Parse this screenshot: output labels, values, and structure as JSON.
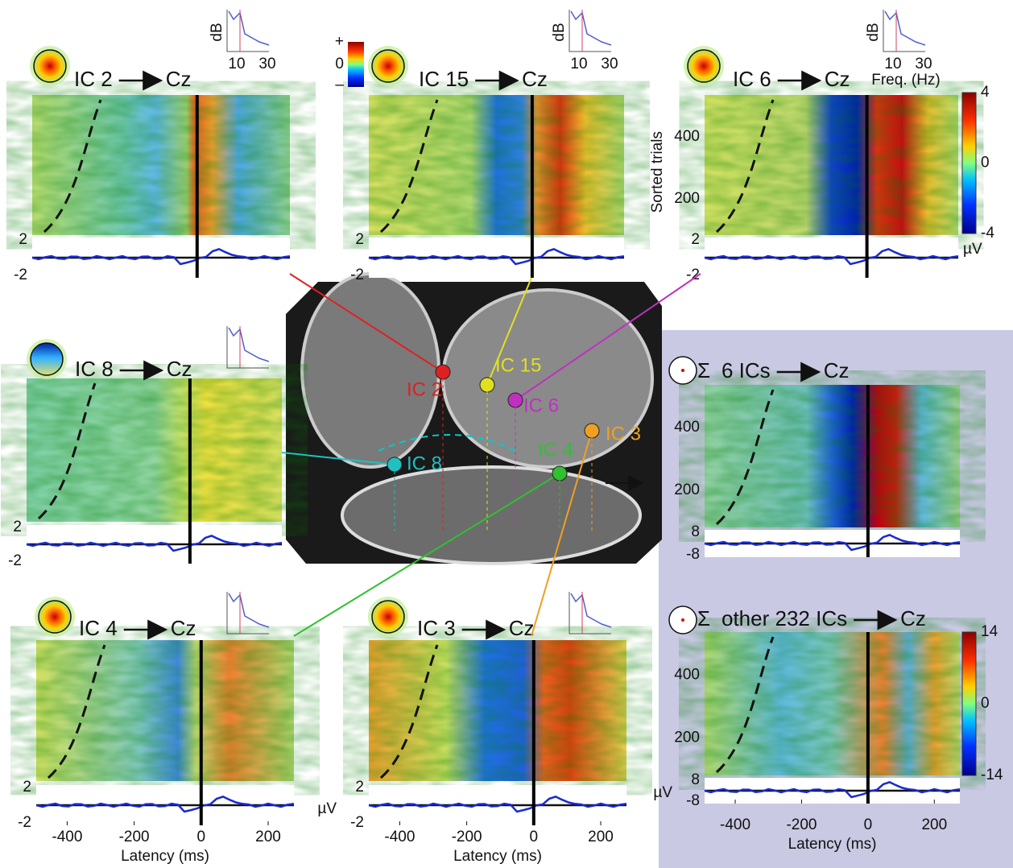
{
  "panels": [
    {
      "label": "IC 2",
      "target": "Cz",
      "spectrum": {
        "unit": "dB",
        "ticks": [
          "10",
          "30"
        ]
      },
      "erp_ticks": [
        "2",
        "-2"
      ]
    },
    {
      "label": "IC 15",
      "target": "Cz",
      "spectrum": {
        "unit": "dB",
        "ticks": [
          "10",
          "30"
        ]
      },
      "erp_ticks": [
        "2",
        "-2"
      ]
    },
    {
      "label": "IC 6",
      "target": "Cz",
      "spectrum": {
        "unit": "dB",
        "ticks": [
          "10",
          "30"
        ],
        "axis_label": "Freq. (Hz)"
      },
      "erp_ticks": [
        "2",
        "-2"
      ],
      "trial_label": "Sorted trials",
      "trial_ticks": [
        "400",
        "200"
      ],
      "colorbar_ticks": [
        "4",
        "0",
        "-4"
      ],
      "erp_unit": "µV"
    },
    {
      "label": "IC 8",
      "target": "Cz",
      "erp_ticks": [
        "2",
        "-2"
      ]
    },
    {
      "label": "IC 4",
      "target": "Cz",
      "erp_ticks": [
        "2",
        "-2"
      ],
      "latency_ticks": [
        "-400",
        "-200",
        "0",
        "200"
      ],
      "latency_label": "Latency (ms)"
    },
    {
      "label": "IC 3",
      "target": "Cz",
      "erp_ticks": [
        "2",
        "-2"
      ],
      "erp_unit": "µV",
      "latency_ticks": [
        "-400",
        "-200",
        "0",
        "200"
      ],
      "latency_label": "Latency (ms)"
    },
    {
      "sum": "Σ",
      "label": "6 ICs",
      "target": "Cz",
      "trial_ticks": [
        "400",
        "200"
      ],
      "erp_ticks": [
        "8",
        "-8"
      ]
    },
    {
      "sum": "Σ",
      "label": "other 232 ICs",
      "target": "Cz",
      "trial_ticks": [
        "400",
        "200"
      ],
      "erp_ticks": [
        "8",
        "-8"
      ],
      "colorbar_ticks": [
        "14",
        "0",
        "-14"
      ],
      "erp_unit": "µV",
      "latency_ticks": [
        "-400",
        "-200",
        "0",
        "200"
      ],
      "latency_label": "Latency (ms)"
    }
  ],
  "colorbar_key": [
    "+",
    "0",
    "–"
  ],
  "brain_labels": [
    "IC 2",
    "IC 15",
    "IC 6",
    "IC 8",
    "IC 4",
    "IC 3"
  ]
}
